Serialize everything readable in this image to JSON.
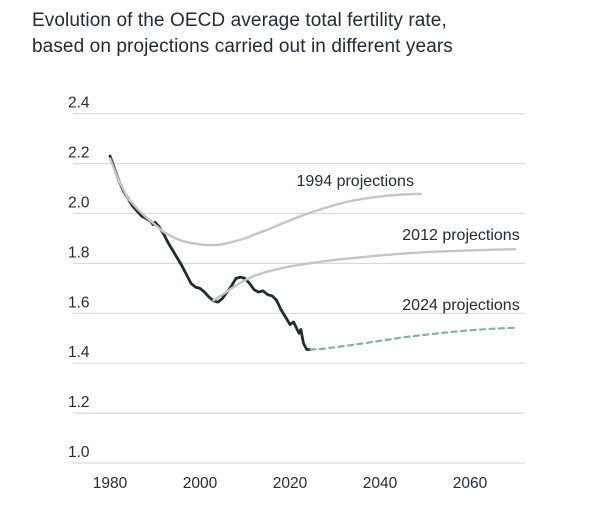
{
  "header": {
    "title_line1": "Evolution of the OECD average total fertility rate,",
    "title_line2": "based on projections carried out in different years"
  },
  "colors": {
    "background": "#ffffff",
    "title_text": "#212b3a",
    "tick_text": "#222c3a",
    "gridline": "#d9dadb",
    "historical_line": "#1d2f2d",
    "projection_gray": "#c4c5c6",
    "projection_teal": "#7fb1ae"
  },
  "chart_data": {
    "type": "line",
    "title": "Evolution of the OECD average total fertility rate, based on projections carried out in different years",
    "xlabel": "",
    "ylabel": "",
    "xlim": [
      1972,
      2072
    ],
    "ylim": [
      1.0,
      2.45
    ],
    "grid": "horizontal",
    "legend_position": "inline-labels",
    "x_tick_labels": [
      "1980",
      "2000",
      "2020",
      "2040",
      "2060"
    ],
    "y_tick_labels": [
      "1.0",
      "1.2",
      "1.4",
      "1.6",
      "1.8",
      "2.0",
      "2.2",
      "2.4"
    ],
    "series": [
      {
        "name": "historical",
        "label": "",
        "style": "solid",
        "color": "#1d2f2d",
        "width": 2.8,
        "points": [
          [
            1980,
            2.23
          ],
          [
            1981,
            2.18
          ],
          [
            1982,
            2.13
          ],
          [
            1983,
            2.09
          ],
          [
            1984,
            2.06
          ],
          [
            1985,
            2.03
          ],
          [
            1986,
            2.01
          ],
          [
            1987,
            1.99
          ],
          [
            1988,
            1.98
          ],
          [
            1989,
            1.97
          ],
          [
            1989.6,
            1.955
          ],
          [
            1990,
            1.965
          ],
          [
            1991,
            1.945
          ],
          [
            1992,
            1.915
          ],
          [
            1993,
            1.88
          ],
          [
            1994,
            1.85
          ],
          [
            1995,
            1.82
          ],
          [
            1996,
            1.79
          ],
          [
            1997,
            1.755
          ],
          [
            1998,
            1.72
          ],
          [
            1999,
            1.705
          ],
          [
            2000,
            1.7
          ],
          [
            2001,
            1.685
          ],
          [
            2002,
            1.665
          ],
          [
            2003,
            1.65
          ],
          [
            2004,
            1.645
          ],
          [
            2005,
            1.66
          ],
          [
            2006,
            1.685
          ],
          [
            2007,
            1.71
          ],
          [
            2008,
            1.74
          ],
          [
            2009,
            1.745
          ],
          [
            2010,
            1.74
          ],
          [
            2011,
            1.72
          ],
          [
            2012,
            1.695
          ],
          [
            2013,
            1.685
          ],
          [
            2014,
            1.69
          ],
          [
            2015,
            1.675
          ],
          [
            2016,
            1.67
          ],
          [
            2017,
            1.653
          ],
          [
            2018,
            1.615
          ],
          [
            2019,
            1.585
          ],
          [
            2020,
            1.555
          ],
          [
            2020.8,
            1.565
          ],
          [
            2022,
            1.52
          ],
          [
            2022.4,
            1.535
          ],
          [
            2023,
            1.48
          ],
          [
            2023.7,
            1.455
          ],
          [
            2024.5,
            1.455
          ]
        ]
      },
      {
        "name": "projections-1994",
        "label": "1994 projections",
        "label_x": 2034.5,
        "label_y": 2.11,
        "style": "solid",
        "color": "#c4c5c6",
        "width": 2.4,
        "points": [
          [
            1980,
            2.22
          ],
          [
            1982,
            2.13
          ],
          [
            1984,
            2.06
          ],
          [
            1986,
            2.02
          ],
          [
            1988,
            1.985
          ],
          [
            1990,
            1.955
          ],
          [
            1992,
            1.925
          ],
          [
            1994,
            1.905
          ],
          [
            1996,
            1.89
          ],
          [
            1998,
            1.882
          ],
          [
            2000,
            1.876
          ],
          [
            2002,
            1.873
          ],
          [
            2004,
            1.874
          ],
          [
            2006,
            1.88
          ],
          [
            2008,
            1.89
          ],
          [
            2010,
            1.9
          ],
          [
            2012,
            1.915
          ],
          [
            2015,
            1.935
          ],
          [
            2018,
            1.958
          ],
          [
            2021,
            1.98
          ],
          [
            2024,
            2.0
          ],
          [
            2027,
            2.018
          ],
          [
            2030,
            2.034
          ],
          [
            2033,
            2.048
          ],
          [
            2036,
            2.058
          ],
          [
            2039,
            2.066
          ],
          [
            2042,
            2.072
          ],
          [
            2045,
            2.076
          ],
          [
            2049,
            2.079
          ]
        ]
      },
      {
        "name": "projections-2012",
        "label": "2012 projections",
        "label_x": 2058,
        "label_y": 1.894,
        "style": "solid",
        "color": "#c4c5c6",
        "width": 2.4,
        "points": [
          [
            2003,
            1.652
          ],
          [
            2005,
            1.675
          ],
          [
            2007,
            1.7
          ],
          [
            2009,
            1.723
          ],
          [
            2011,
            1.742
          ],
          [
            2012,
            1.75
          ],
          [
            2014,
            1.762
          ],
          [
            2016,
            1.772
          ],
          [
            2018,
            1.78
          ],
          [
            2020,
            1.788
          ],
          [
            2024,
            1.8
          ],
          [
            2028,
            1.81
          ],
          [
            2032,
            1.818
          ],
          [
            2036,
            1.825
          ],
          [
            2040,
            1.832
          ],
          [
            2045,
            1.839
          ],
          [
            2050,
            1.845
          ],
          [
            2055,
            1.849
          ],
          [
            2060,
            1.852
          ],
          [
            2065,
            1.855
          ],
          [
            2070,
            1.857
          ]
        ]
      },
      {
        "name": "projections-2024",
        "label": "2024 projections",
        "label_x": 2058,
        "label_y": 1.613,
        "style": "dashed",
        "color": "#7fb1ae",
        "width": 2.2,
        "points": [
          [
            2024.5,
            1.455
          ],
          [
            2026,
            1.456
          ],
          [
            2028,
            1.459
          ],
          [
            2030,
            1.464
          ],
          [
            2033,
            1.471
          ],
          [
            2036,
            1.479
          ],
          [
            2039,
            1.487
          ],
          [
            2042,
            1.495
          ],
          [
            2045,
            1.503
          ],
          [
            2048,
            1.51
          ],
          [
            2051,
            1.516
          ],
          [
            2054,
            1.522
          ],
          [
            2057,
            1.527
          ],
          [
            2060,
            1.532
          ],
          [
            2063,
            1.536
          ],
          [
            2066,
            1.539
          ],
          [
            2070,
            1.542
          ]
        ]
      }
    ]
  }
}
